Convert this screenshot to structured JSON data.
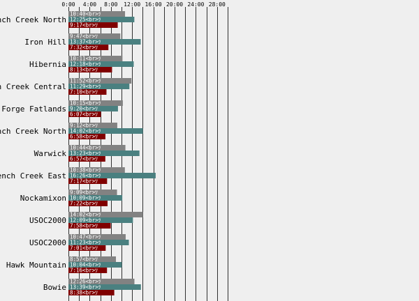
{
  "chart_data": {
    "type": "bar",
    "orientation": "horizontal",
    "x_unit": "minutes (m:ss)",
    "xlim": [
      0,
      30
    ],
    "x_ticks": [
      {
        "value": 0,
        "label": "0:00"
      },
      {
        "value": 4,
        "label": "4:00"
      },
      {
        "value": 8,
        "label": "8:00"
      },
      {
        "value": 12,
        "label": "12:00"
      },
      {
        "value": 16,
        "label": "16:00"
      },
      {
        "value": 20,
        "label": "20:00"
      },
      {
        "value": 24,
        "label": "24:00"
      },
      {
        "value": 28,
        "label": "28:00"
      }
    ],
    "categories": [
      "French Creek North",
      "Iron Hill",
      "Hibernia",
      "French Creek Central",
      "Valley Forge Fatlands",
      "French Creek North",
      "Warwick",
      "French Creek East",
      "Nockamixon",
      "USOC2000",
      "USOC2000",
      "Hawk Mountain",
      "Bowie"
    ],
    "series": [
      {
        "color": "#828282",
        "values": [
          10.6667,
          9.7833,
          10.1833,
          11.8667,
          10.25,
          9.2,
          10.7333,
          10.6333,
          9.15,
          14.0333,
          10.7833,
          8.95,
          12.4333
        ],
        "labels": [
          "10:40<br>ﾂ",
          "9:47<br>ﾂ",
          "10:11<br>ﾂ",
          "11:52<br>ﾂ",
          "10:15<br>ﾂ",
          "9:12<br>ﾂ",
          "10:44<br>ﾂ",
          "10:38<br>ﾂ",
          "9:09<br>ﾂ",
          "14:02<br>ﾂ",
          "10:47<br>ﾂ",
          "8:57<br>ﾂ",
          "12:26<br>ﾂ"
        ]
      },
      {
        "color": "#4a8080",
        "values": [
          12.4167,
          13.6167,
          12.3,
          11.4833,
          9.3333,
          14.0333,
          13.3833,
          16.4333,
          10.15,
          12.15,
          11.3833,
          10.0667,
          13.65
        ],
        "labels": [
          "12:25<br>ﾂ",
          "13:37<br>ﾂ",
          "12:18<br>ﾂ",
          "11:29<br>ﾂ",
          "9:20<br>ﾂ",
          "14:02<br>ﾂ",
          "13:23<br>ﾂ",
          "16:26<br>ﾂ",
          "10:09<br>ﾂ",
          "12:09<br>ﾂ",
          "11:23<br>ﾂ",
          "10:04<br>ﾂ",
          "13:39<br>ﾂ"
        ]
      },
      {
        "color": "#800000",
        "values": [
          9.2833,
          7.5333,
          8.2167,
          7.1667,
          6.1167,
          6.9667,
          6.95,
          7.2833,
          7.3667,
          7.9667,
          7.0167,
          7.2667,
          8.6333
        ],
        "labels": [
          "9:17<br>ﾂ",
          "7:32<br>ﾂ",
          "8:13<br>ﾂ",
          "7:10<br>ﾂ",
          "6:07<br>ﾂ",
          "6:58<br>ﾂ",
          "6:57<br>ﾂ",
          "7:17<br>ﾂ",
          "7:22<br>ﾂ",
          "7:58<br>ﾂ",
          "7:01<br>ﾂ",
          "7:16<br>ﾂ",
          "8:38<br>ﾂ"
        ]
      }
    ]
  }
}
